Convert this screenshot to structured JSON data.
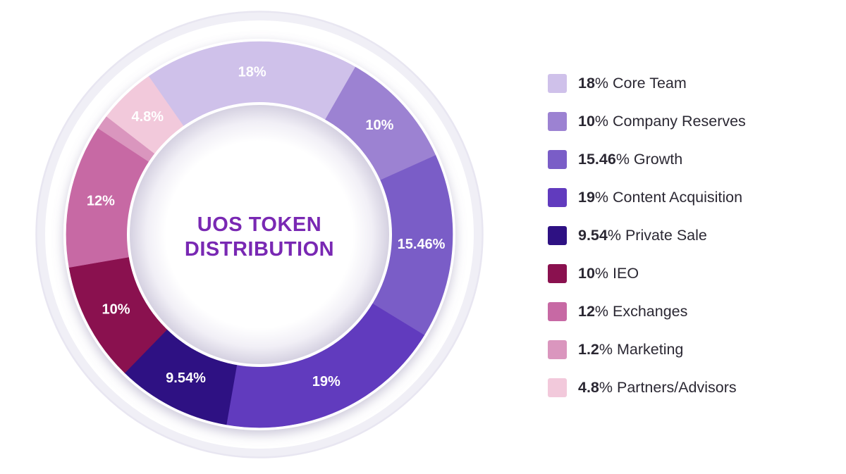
{
  "page": {
    "background": "#FFFFFF"
  },
  "title": {
    "line1": "UOS TOKEN",
    "line2": "DISTRIBUTION",
    "color": "#7928B3"
  },
  "chart_data": {
    "type": "pie",
    "variant": "donut",
    "title": "UOS TOKEN DISTRIBUTION",
    "unit": "%",
    "direction": "clockwise",
    "start_angle_deg": -35,
    "legend_position": "right",
    "total": 100,
    "series": [
      {
        "name": "Core Team",
        "value": 18,
        "pct_label": "18",
        "slice_label": "18%",
        "color": "#CFC1EA"
      },
      {
        "name": "Company Reserves",
        "value": 10,
        "pct_label": "10",
        "slice_label": "10%",
        "color": "#9C82D2"
      },
      {
        "name": "Growth",
        "value": 15.46,
        "pct_label": "15.46",
        "slice_label": "15.46%",
        "color": "#7A5DC7"
      },
      {
        "name": "Content Acquisition",
        "value": 19,
        "pct_label": "19",
        "slice_label": "19%",
        "color": "#613BBE"
      },
      {
        "name": "Private Sale",
        "value": 9.54,
        "pct_label": "9.54",
        "slice_label": "9.54%",
        "color": "#2E1183"
      },
      {
        "name": "IEO",
        "value": 10,
        "pct_label": "10",
        "slice_label": "10%",
        "color": "#8A114F"
      },
      {
        "name": "Exchanges",
        "value": 12,
        "pct_label": "12",
        "slice_label": "12%",
        "color": "#C769A4"
      },
      {
        "name": "Marketing",
        "value": 1.2,
        "pct_label": "1.2",
        "slice_label": "",
        "color": "#DA96BE"
      },
      {
        "name": "Partners/Advisors",
        "value": 4.8,
        "pct_label": "4.8",
        "slice_label": "4.8%",
        "color": "#F2C9DB"
      }
    ],
    "legend_text_color": "#2B2833",
    "slice_label_color": "#FFFFFF"
  }
}
